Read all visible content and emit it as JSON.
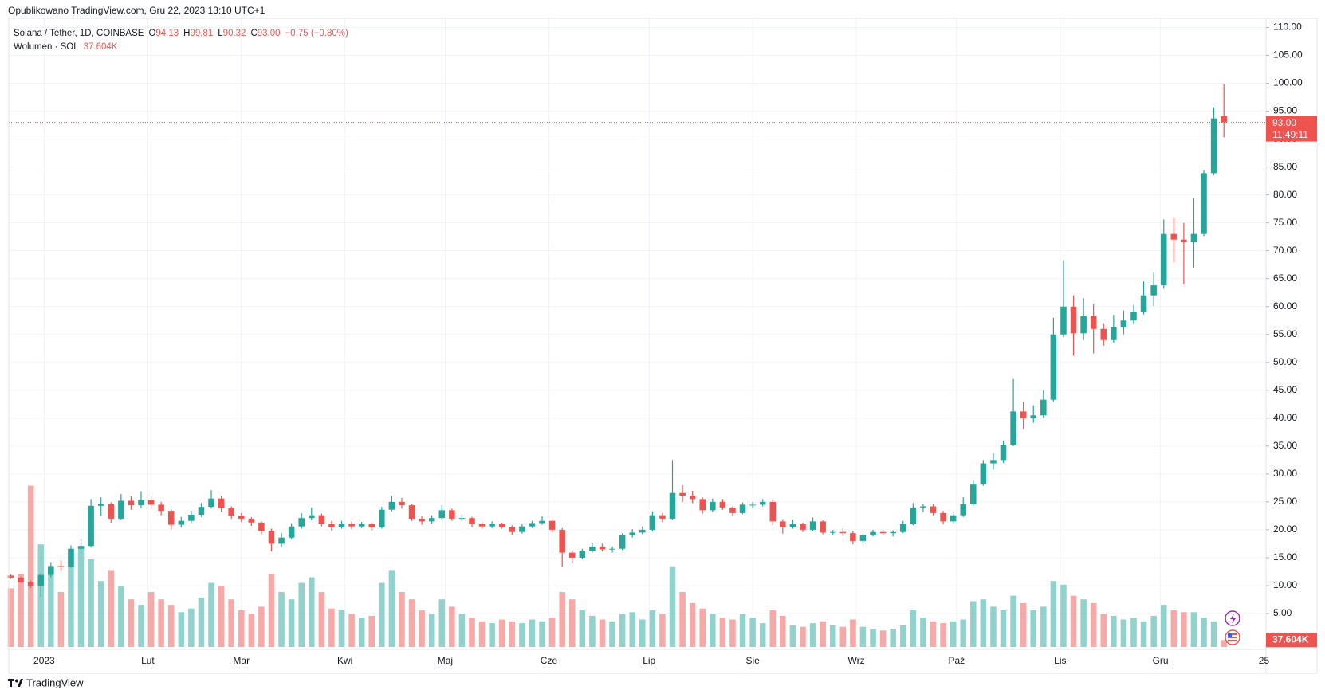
{
  "chart_data": {
    "type": "candlestick",
    "published": "Opublikowano TradingView.com, Gru 22, 2023 13:10 UTC+1",
    "symbol": "Solana / Tether, 1D, COINBASE",
    "ohlc": [
      {
        "label": "O",
        "value": "94.13"
      },
      {
        "label": "H",
        "value": "99.81"
      },
      {
        "label": "L",
        "value": "90.32"
      },
      {
        "label": "C",
        "value": "93.00"
      }
    ],
    "change": "−0.75 (−0.80%)",
    "volume_name": "Wolumen · SOL",
    "volume_label": "37.604K",
    "last_price": {
      "value": 93.0,
      "label": "93.00",
      "countdown": "11:49:11"
    },
    "brand": "TradingView",
    "up_color": "#26a69a",
    "down_color": "#ef5350",
    "grid": true,
    "candles": [
      [
        11.8,
        12,
        11.2,
        11.4
      ],
      [
        11.4,
        11.6,
        10.5,
        10.6
      ],
      [
        10.6,
        10.9,
        9.6,
        9.9
      ],
      [
        9.9,
        12.2,
        8.0,
        11.9
      ],
      [
        11.9,
        14.2,
        11.5,
        13.5
      ],
      [
        13.5,
        14.5,
        12.8,
        13.4
      ],
      [
        13.4,
        17.2,
        13.2,
        16.6
      ],
      [
        16.6,
        18.3,
        15.8,
        17.1
      ],
      [
        17.1,
        25.5,
        16.8,
        24.3
      ],
      [
        24.3,
        25.8,
        22.5,
        24.6
      ],
      [
        24.6,
        24.9,
        21.3,
        22.0
      ],
      [
        22.0,
        26.4,
        21.8,
        25.2
      ],
      [
        25.2,
        26.0,
        23.6,
        24.4
      ],
      [
        24.4,
        26.9,
        24.0,
        25.3
      ],
      [
        25.3,
        25.9,
        23.8,
        24.5
      ],
      [
        24.5,
        25.0,
        22.6,
        23.4
      ],
      [
        23.4,
        23.7,
        20.1,
        20.9
      ],
      [
        20.9,
        22.3,
        20.4,
        21.6
      ],
      [
        21.6,
        23.4,
        21.2,
        22.7
      ],
      [
        22.7,
        24.8,
        22.3,
        24.1
      ],
      [
        24.1,
        27.1,
        23.8,
        25.6
      ],
      [
        25.6,
        26.0,
        23.2,
        23.9
      ],
      [
        23.9,
        24.2,
        22.0,
        22.5
      ],
      [
        22.5,
        23.0,
        21.4,
        22.0
      ],
      [
        22.0,
        22.3,
        20.7,
        21.3
      ],
      [
        21.3,
        21.5,
        19.2,
        19.8
      ],
      [
        19.8,
        20.2,
        16.1,
        17.5
      ],
      [
        17.5,
        19.4,
        17.0,
        18.6
      ],
      [
        18.6,
        21.2,
        18.3,
        20.6
      ],
      [
        20.6,
        23.0,
        20.2,
        22.1
      ],
      [
        22.1,
        24.0,
        21.7,
        22.6
      ],
      [
        22.6,
        22.9,
        20.6,
        21.0
      ],
      [
        21.0,
        21.6,
        19.8,
        20.5
      ],
      [
        20.5,
        21.6,
        20.2,
        21.1
      ],
      [
        21.1,
        21.5,
        20.1,
        20.6
      ],
      [
        20.6,
        21.4,
        20.3,
        21.0
      ],
      [
        21.0,
        21.3,
        19.9,
        20.4
      ],
      [
        20.4,
        24.1,
        20.2,
        23.6
      ],
      [
        23.6,
        26.1,
        23.3,
        25.0
      ],
      [
        25.0,
        25.7,
        23.8,
        24.4
      ],
      [
        24.4,
        24.6,
        21.6,
        22.0
      ],
      [
        22.0,
        22.4,
        20.9,
        21.5
      ],
      [
        21.5,
        22.6,
        21.1,
        22.1
      ],
      [
        22.1,
        24.4,
        21.9,
        23.5
      ],
      [
        23.5,
        23.8,
        21.6,
        22.0
      ],
      [
        22.0,
        22.8,
        21.5,
        22.1
      ],
      [
        22.1,
        22.3,
        20.5,
        21.0
      ],
      [
        21.0,
        21.3,
        20.2,
        20.6
      ],
      [
        20.6,
        21.5,
        20.3,
        21.1
      ],
      [
        21.1,
        21.3,
        20.2,
        20.5
      ],
      [
        20.5,
        20.8,
        19.1,
        19.6
      ],
      [
        19.6,
        21.0,
        19.3,
        20.6
      ],
      [
        20.6,
        21.6,
        20.3,
        21.2
      ],
      [
        21.2,
        22.4,
        20.9,
        21.6
      ],
      [
        21.6,
        21.9,
        19.5,
        20.0
      ],
      [
        20.0,
        20.3,
        13.3,
        15.9
      ],
      [
        15.9,
        16.3,
        14.0,
        15.0
      ],
      [
        15.0,
        16.6,
        14.7,
        16.2
      ],
      [
        16.2,
        17.6,
        15.9,
        17.0
      ],
      [
        17.0,
        17.5,
        16.1,
        16.5
      ],
      [
        16.5,
        17.0,
        15.9,
        16.6
      ],
      [
        16.6,
        19.4,
        16.4,
        19.0
      ],
      [
        19.0,
        20.1,
        18.6,
        19.5
      ],
      [
        19.5,
        20.6,
        19.2,
        20.0
      ],
      [
        20.0,
        23.3,
        19.7,
        22.6
      ],
      [
        22.6,
        23.0,
        21.4,
        22.0
      ],
      [
        22.0,
        32.5,
        21.8,
        26.6
      ],
      [
        26.6,
        28.0,
        25.0,
        26.1
      ],
      [
        26.1,
        27.0,
        24.8,
        25.5
      ],
      [
        25.5,
        25.8,
        22.9,
        23.5
      ],
      [
        23.5,
        25.6,
        23.2,
        25.0
      ],
      [
        25.0,
        25.5,
        23.6,
        24.0
      ],
      [
        24.0,
        24.2,
        22.5,
        23.0
      ],
      [
        23.0,
        24.9,
        22.8,
        24.5
      ],
      [
        24.5,
        25.0,
        23.9,
        24.5
      ],
      [
        24.5,
        25.5,
        24.2,
        25.0
      ],
      [
        25.0,
        25.3,
        20.8,
        21.5
      ],
      [
        21.5,
        21.9,
        19.3,
        20.5
      ],
      [
        20.5,
        21.8,
        20.2,
        21.0
      ],
      [
        21.0,
        21.3,
        19.6,
        20.0
      ],
      [
        20.0,
        22.2,
        19.8,
        21.5
      ],
      [
        21.5,
        21.7,
        19.2,
        19.5
      ],
      [
        19.5,
        20.0,
        19.0,
        19.6
      ],
      [
        19.6,
        20.2,
        18.9,
        19.4
      ],
      [
        19.4,
        19.8,
        17.4,
        18.0
      ],
      [
        18.0,
        19.3,
        17.7,
        19.0
      ],
      [
        19.0,
        20.0,
        18.8,
        19.6
      ],
      [
        19.6,
        20.0,
        19.1,
        19.4
      ],
      [
        19.4,
        19.9,
        18.8,
        19.6
      ],
      [
        19.6,
        21.6,
        19.4,
        21.0
      ],
      [
        21.0,
        24.8,
        20.8,
        24.0
      ],
      [
        24.0,
        24.6,
        23.2,
        24.2
      ],
      [
        24.2,
        24.6,
        22.6,
        23.0
      ],
      [
        23.0,
        23.4,
        21.0,
        21.5
      ],
      [
        21.5,
        23.2,
        21.2,
        22.6
      ],
      [
        22.6,
        25.8,
        22.3,
        24.6
      ],
      [
        24.6,
        28.8,
        24.3,
        28.1
      ],
      [
        28.1,
        32.5,
        27.9,
        31.9
      ],
      [
        31.9,
        33.8,
        30.8,
        32.5
      ],
      [
        32.5,
        36.0,
        32.0,
        35.2
      ],
      [
        35.2,
        47.0,
        35.0,
        41.2
      ],
      [
        41.2,
        43.0,
        38.0,
        40.0
      ],
      [
        40.0,
        42.3,
        39.2,
        40.5
      ],
      [
        40.5,
        45.0,
        40.1,
        43.3
      ],
      [
        43.3,
        58.0,
        43.0,
        55.0
      ],
      [
        55.0,
        68.3,
        54.5,
        60.0
      ],
      [
        60.0,
        62.0,
        51.2,
        55.2
      ],
      [
        55.2,
        61.5,
        54.0,
        58.3
      ],
      [
        58.3,
        60.5,
        51.6,
        56.0
      ],
      [
        56.0,
        57.0,
        53.0,
        54.0
      ],
      [
        54.0,
        58.5,
        53.5,
        56.3
      ],
      [
        56.3,
        59.3,
        55.0,
        57.5
      ],
      [
        57.5,
        60.3,
        56.8,
        59.0
      ],
      [
        59.0,
        64.5,
        58.6,
        62.0
      ],
      [
        62.0,
        66.2,
        60.1,
        63.8
      ],
      [
        63.8,
        75.6,
        63.2,
        73.0
      ],
      [
        73.0,
        76.0,
        68.0,
        72.0
      ],
      [
        72.0,
        75.0,
        64.0,
        71.5
      ],
      [
        71.5,
        79.5,
        67.0,
        73.0
      ],
      [
        73.0,
        84.5,
        72.6,
        83.9
      ],
      [
        83.9,
        95.7,
        83.5,
        93.7
      ],
      [
        94.13,
        99.81,
        90.32,
        93.0
      ]
    ],
    "volumes": [
      320,
      400,
      880,
      560,
      420,
      300,
      520,
      540,
      480,
      360,
      420,
      330,
      260,
      230,
      300,
      260,
      230,
      190,
      210,
      270,
      350,
      330,
      260,
      200,
      180,
      220,
      400,
      300,
      260,
      350,
      380,
      300,
      210,
      200,
      180,
      160,
      170,
      350,
      420,
      300,
      260,
      200,
      180,
      260,
      220,
      180,
      160,
      140,
      130,
      150,
      140,
      130,
      150,
      140,
      160,
      300,
      260,
      200,
      170,
      150,
      140,
      180,
      190,
      150,
      200,
      180,
      440,
      300,
      240,
      210,
      180,
      160,
      150,
      180,
      160,
      130,
      200,
      170,
      120,
      110,
      130,
      140,
      120,
      110,
      150,
      110,
      100,
      90,
      100,
      120,
      200,
      160,
      140,
      130,
      140,
      150,
      250,
      260,
      220,
      200,
      280,
      240,
      200,
      220,
      360,
      340,
      280,
      260,
      240,
      180,
      170,
      150,
      160,
      140,
      170,
      230,
      200,
      190,
      190,
      160,
      140,
      37.604
    ],
    "vlim": [
      0,
      1000
    ],
    "xlim": [
      -0.2,
      125.2
    ],
    "xticks": [
      {
        "value": 3.33,
        "label": "2023"
      },
      {
        "value": 13.67,
        "label": "Lut"
      },
      {
        "value": 23,
        "label": "Mar"
      },
      {
        "value": 33.33,
        "label": "Kwi"
      },
      {
        "value": 43.33,
        "label": "Maj"
      },
      {
        "value": 53.67,
        "label": "Cze"
      },
      {
        "value": 63.67,
        "label": "Lip"
      },
      {
        "value": 74,
        "label": "Sie"
      },
      {
        "value": 84.33,
        "label": "Wrz"
      },
      {
        "value": 94.33,
        "label": "Paź"
      },
      {
        "value": 104.67,
        "label": "Lis"
      },
      {
        "value": 114.67,
        "label": "Gru"
      },
      {
        "value": 125,
        "label": "25"
      }
    ],
    "ylim": [
      -1,
      111.5
    ],
    "yticks": [
      {
        "value": 5,
        "label": "5.00"
      },
      {
        "value": 10,
        "label": "10.00"
      },
      {
        "value": 15,
        "label": "15.00"
      },
      {
        "value": 20,
        "label": "20.00"
      },
      {
        "value": 25,
        "label": "25.00"
      },
      {
        "value": 30,
        "label": "30.00"
      },
      {
        "value": 35,
        "label": "35.00"
      },
      {
        "value": 40,
        "label": "40.00"
      },
      {
        "value": 45,
        "label": "45.00"
      },
      {
        "value": 50,
        "label": "50.00"
      },
      {
        "value": 55,
        "label": "55.00"
      },
      {
        "value": 60,
        "label": "60.00"
      },
      {
        "value": 65,
        "label": "65.00"
      },
      {
        "value": 70,
        "label": "70.00"
      },
      {
        "value": 75,
        "label": "75.00"
      },
      {
        "value": 80,
        "label": "80.00"
      },
      {
        "value": 85,
        "label": "85.00"
      },
      {
        "value": 90,
        "label": "90.00"
      },
      {
        "value": 95,
        "label": "95.00"
      },
      {
        "value": 100,
        "label": "100.00"
      },
      {
        "value": 105,
        "label": "105.00"
      },
      {
        "value": 110,
        "label": "110.00"
      }
    ]
  }
}
